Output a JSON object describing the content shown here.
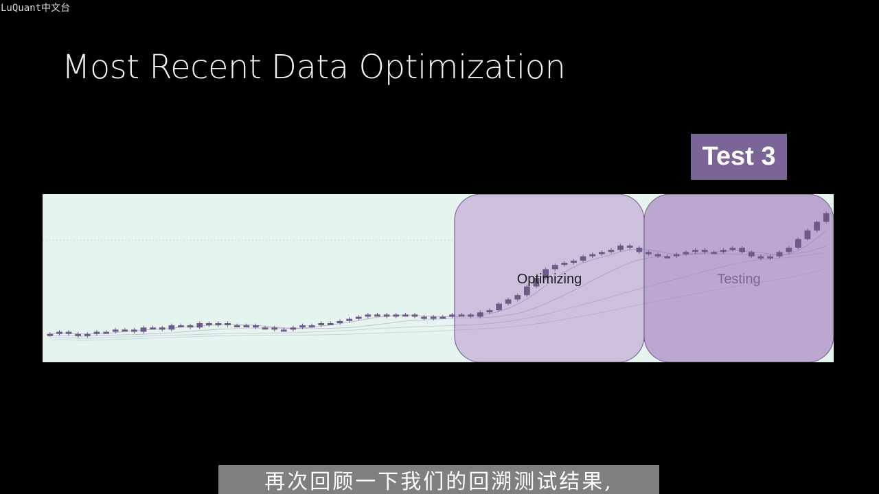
{
  "watermark": "LuQuant中文台",
  "slide": {
    "title": "Most Recent Data Optimization",
    "badge": "Test 3",
    "optimizing_label": "Optimizing",
    "testing_label": "Testing"
  },
  "subtitle": "再次回顾一下我们的回溯测试结果,",
  "colors": {
    "background": "#000000",
    "badge": "#7b6496",
    "chart_bg": "#e6f4f0",
    "optimizing_fill": "#c9b8d9",
    "testing_fill": "#b9a2cf",
    "candle": "#6e5a86"
  },
  "chart_data": {
    "type": "candlestick",
    "close": [
      44,
      45,
      44,
      43,
      44,
      45,
      45,
      46,
      46,
      45,
      47,
      47,
      46,
      48,
      48,
      47,
      49,
      48,
      49,
      48,
      48,
      48,
      47,
      47,
      46,
      46,
      47,
      48,
      48,
      49,
      49,
      50,
      51,
      52,
      53,
      53,
      52,
      53,
      53,
      52,
      51,
      52,
      52,
      53,
      53,
      52,
      54,
      55,
      58,
      60,
      62,
      66,
      70,
      74,
      76,
      77,
      78,
      80,
      81,
      82,
      83,
      85,
      84,
      82,
      81,
      80,
      80,
      81,
      82,
      83,
      82,
      82,
      83,
      84,
      82,
      80,
      79,
      80,
      82,
      84,
      88,
      92,
      96,
      100
    ],
    "optimizing_range": [
      48,
      67
    ],
    "testing_range": [
      67,
      83
    ]
  }
}
